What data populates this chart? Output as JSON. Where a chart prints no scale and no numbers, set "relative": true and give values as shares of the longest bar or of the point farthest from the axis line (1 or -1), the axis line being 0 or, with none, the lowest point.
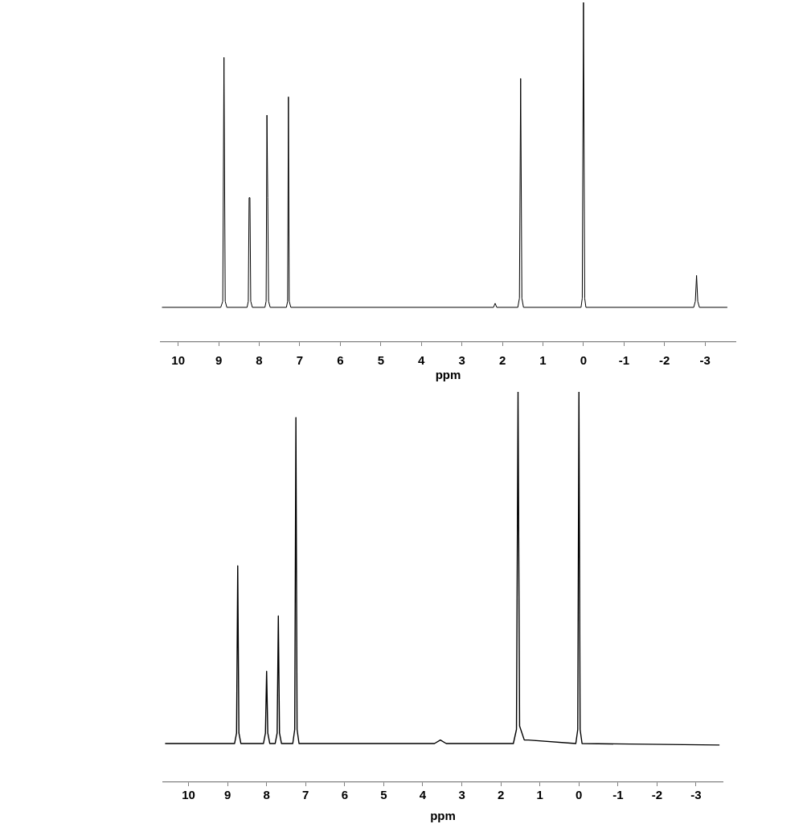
{
  "chart_data": [
    {
      "type": "line",
      "xlabel": "ppm",
      "relative": true,
      "tick_labels": "x",
      "color": "#000000",
      "xlim": [
        10.43,
        -3.75
      ],
      "xticks": [
        10,
        9,
        8,
        7,
        6,
        5,
        4,
        3,
        2,
        1,
        0,
        -1,
        -2,
        -3
      ],
      "x": [
        10.4,
        8.95,
        8.9,
        8.87,
        8.84,
        8.8,
        8.3,
        8.27,
        8.25,
        8.23,
        8.21,
        8.17,
        7.86,
        7.83,
        7.81,
        7.79,
        7.77,
        7.73,
        7.33,
        7.3,
        7.28,
        7.26,
        7.22,
        2.22,
        2.18,
        2.14,
        1.62,
        1.58,
        1.55,
        1.52,
        1.48,
        0.06,
        0.03,
        0,
        -0.03,
        -0.06,
        -2.72,
        -2.76,
        -2.79,
        -2.82,
        -2.86,
        -3.55
      ],
      "values": [
        0.102,
        0.102,
        0.12,
        0.838,
        0.12,
        0.102,
        0.102,
        0.12,
        0.425,
        0.425,
        0.12,
        0.102,
        0.102,
        0.12,
        0.668,
        0.425,
        0.12,
        0.102,
        0.102,
        0.12,
        0.722,
        0.12,
        0.102,
        0.102,
        0.114,
        0.102,
        0.102,
        0.129,
        0.776,
        0.129,
        0.102,
        0.102,
        0.129,
        1,
        0.129,
        0.102,
        0.102,
        0.12,
        0.196,
        0.12,
        0.102,
        0.102
      ]
    },
    {
      "type": "line",
      "xlabel": "ppm",
      "relative": true,
      "tick_labels": "x",
      "color": "#000000",
      "xlim": [
        10.65,
        -3.68
      ],
      "xticks": [
        10,
        9,
        8,
        7,
        6,
        5,
        4,
        3,
        2,
        1,
        0,
        -1,
        -2,
        -3
      ],
      "x": [
        10.6,
        8.82,
        8.77,
        8.74,
        8.71,
        8.66,
        8.08,
        8.03,
        8.0,
        7.97,
        7.92,
        7.78,
        7.73,
        7.7,
        7.67,
        7.62,
        7.33,
        7.28,
        7.25,
        7.22,
        7.17,
        3.7,
        3.55,
        3.4,
        1.68,
        1.6,
        1.56,
        1.52,
        1.4,
        1.3,
        0.08,
        0.03,
        0,
        -0.03,
        -0.08,
        -3.6
      ],
      "values": [
        0.099,
        0.099,
        0.126,
        0.554,
        0.126,
        0.099,
        0.099,
        0.126,
        0.284,
        0.126,
        0.099,
        0.099,
        0.126,
        0.426,
        0.126,
        0.099,
        0.099,
        0.135,
        0.934,
        0.135,
        0.099,
        0.099,
        0.108,
        0.099,
        0.099,
        0.135,
        1,
        0.144,
        0.108,
        0.108,
        0.099,
        0.135,
        1,
        0.135,
        0.099,
        0.095
      ]
    }
  ]
}
